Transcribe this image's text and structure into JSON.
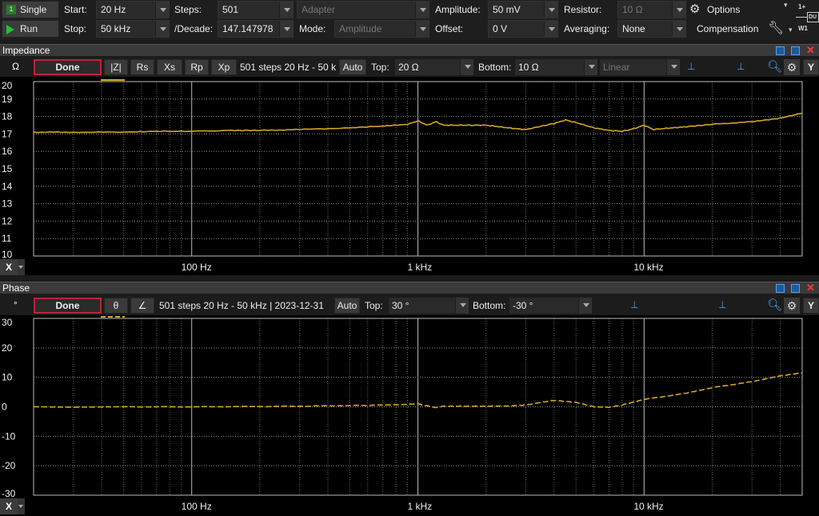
{
  "toolbar": {
    "single_label": "Single",
    "run_label": "Run",
    "start_label": "Start:",
    "start_value": "20 Hz",
    "stop_label": "Stop:",
    "stop_value": "50 kHz",
    "steps_label": "Steps:",
    "steps_value": "501",
    "decade_label": "/Decade:",
    "decade_value": "147.147978",
    "adapter_value": "Adapter",
    "mode_label": "Mode:",
    "mode_value": "Amplitude",
    "amplitude_label": "Amplitude:",
    "amplitude_value": "50 mV",
    "offset_label": "Offset:",
    "offset_value": "0 V",
    "resistor_label": "Resistor:",
    "resistor_value": "10 Ω",
    "averaging_label": "Averaging:",
    "averaging_value": "None",
    "options_label": "Options",
    "compensation_label": "Compensation",
    "dut_label": "DU",
    "w1_label": "W1",
    "one_plus": "1+"
  },
  "impedance_panel": {
    "title": "Impedance",
    "unit": "Ω",
    "done_label": "Done",
    "buttons": [
      "|Z|",
      "Rs",
      "Xs",
      "Rp",
      "Xp"
    ],
    "info_text": "501 steps 20 Hz - 50 k",
    "auto_label": "Auto",
    "top_label": "Top:",
    "top_value": "20 Ω",
    "bottom_label": "Bottom:",
    "bottom_value": "10 Ω",
    "scale_value": "Linear",
    "y_label": "Y",
    "x_label": "X"
  },
  "phase_panel": {
    "title": "Phase",
    "unit": "°",
    "done_label": "Done",
    "buttons": [
      "θ",
      "∠"
    ],
    "info_text": "501 steps 20 Hz - 50 kHz | 2023-12-31",
    "auto_label": "Auto",
    "top_label": "Top:",
    "top_value": "30 °",
    "bottom_label": "Bottom:",
    "bottom_value": "-30 °",
    "y_label": "Y",
    "x_label": "X"
  },
  "colors": {
    "trace": "#d4a52a",
    "done_border": "#c0223a",
    "run_green": "#22c03a"
  },
  "chart_data": [
    {
      "type": "line",
      "title": "Impedance",
      "x_scale": "log",
      "xlim": [
        20,
        50000
      ],
      "ylim": [
        10,
        20
      ],
      "grid": true,
      "y_ticks": [
        "20",
        "19",
        "18",
        "17",
        "16",
        "15",
        "14",
        "13",
        "12",
        "11",
        "10"
      ],
      "x_ticks": [
        "100 Hz",
        "1 kHz",
        "10 kHz"
      ],
      "series": [
        {
          "x": [
            20,
            30,
            50,
            70,
            100,
            150,
            200,
            300,
            500,
            700,
            900,
            1000,
            1100,
            1200,
            1300,
            1500,
            2000,
            2500,
            3000,
            4000,
            4500,
            5000,
            6000,
            7000,
            8000,
            9000,
            10000,
            11000,
            12000,
            15000,
            20000,
            30000,
            40000,
            50000
          ],
          "y": [
            17.1,
            17.1,
            17.1,
            17.15,
            17.15,
            17.2,
            17.2,
            17.25,
            17.35,
            17.45,
            17.55,
            17.75,
            17.5,
            17.7,
            17.5,
            17.5,
            17.5,
            17.35,
            17.25,
            17.6,
            17.8,
            17.65,
            17.35,
            17.2,
            17.15,
            17.3,
            17.5,
            17.25,
            17.3,
            17.4,
            17.55,
            17.7,
            17.9,
            18.2
          ]
        }
      ]
    },
    {
      "type": "line",
      "title": "Phase",
      "x_scale": "log",
      "xlim": [
        20,
        50000
      ],
      "ylim": [
        -30,
        30
      ],
      "grid": true,
      "y_ticks": [
        "30",
        "20",
        "10",
        "0",
        "-10",
        "-20",
        "-30"
      ],
      "x_ticks": [
        "100 Hz",
        "1 kHz",
        "10 kHz"
      ],
      "series": [
        {
          "x": [
            20,
            50,
            100,
            200,
            400,
            700,
            900,
            1000,
            1100,
            1200,
            1300,
            1500,
            2000,
            2500,
            3000,
            3500,
            4000,
            5000,
            6000,
            7000,
            8000,
            9000,
            10000,
            15000,
            20000,
            30000,
            40000,
            50000
          ],
          "y": [
            0,
            0,
            0,
            0.1,
            0.3,
            0.6,
            0.8,
            1.0,
            0.3,
            -0.3,
            0.2,
            0.2,
            0.2,
            0.3,
            0.6,
            1.5,
            2.2,
            1.5,
            0,
            -0.2,
            0.6,
            1.6,
            2.5,
            4.5,
            6.5,
            8.5,
            10.5,
            11.5
          ]
        }
      ]
    }
  ]
}
